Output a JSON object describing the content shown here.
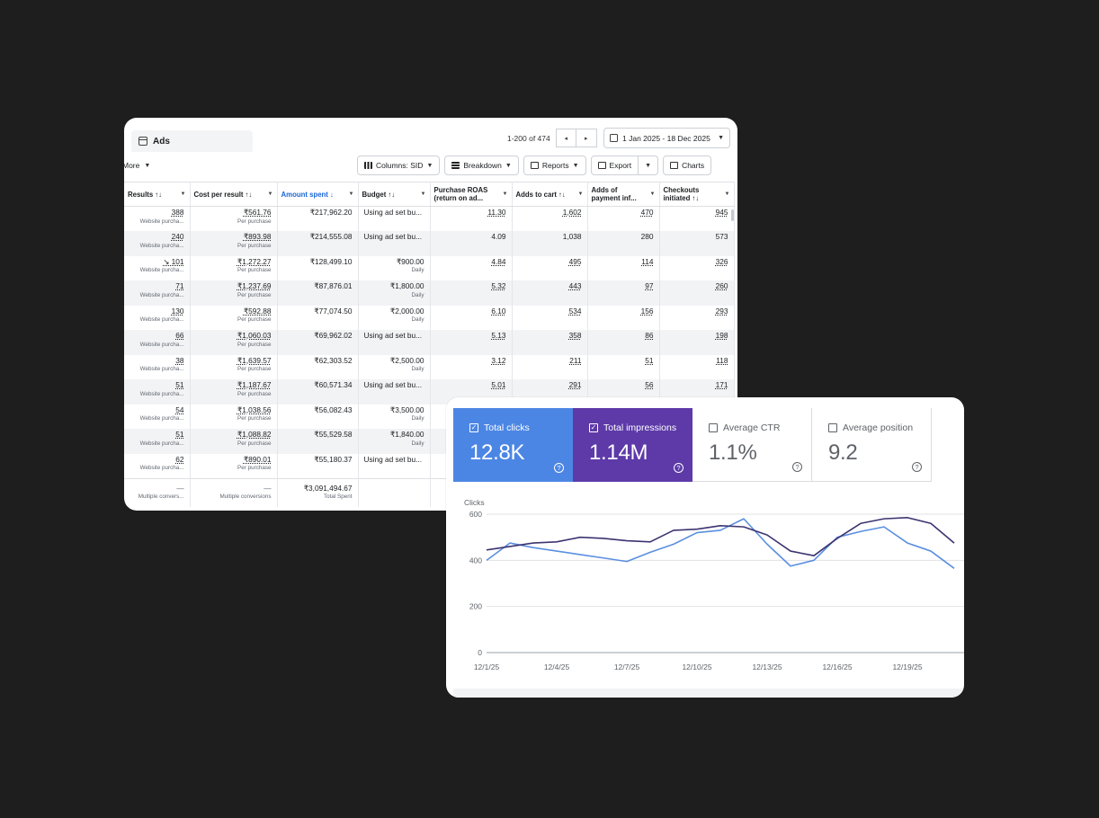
{
  "ads_panel": {
    "tab_label": "Ads",
    "pagination": {
      "range": "1-200 of 474",
      "prev": "◂",
      "next": "▸"
    },
    "date_range": "1 Jan 2025 - 18 Dec 2025",
    "more_label": "More",
    "toolbar": {
      "columns": "Columns: SID",
      "breakdown": "Breakdown",
      "reports": "Reports",
      "export": "Export",
      "charts": "Charts"
    },
    "columns": [
      "Results ↑↓",
      "Cost per result ↑↓",
      "Amount spent ↓",
      "Budget ↑↓",
      "Purchase ROAS (return on ad...",
      "Adds to cart ↑↓",
      "Adds of payment inf...",
      "Checkouts initiated ↑↓"
    ],
    "rows": [
      {
        "results": "388",
        "results_sub": "Website purcha...",
        "cost": "₹561.76",
        "cost_sub": "Per purchase",
        "spent": "₹217,962.20",
        "budget": "Using ad set bu...",
        "budget_sub": "",
        "roas": "11.30",
        "atc": "1,602",
        "payment": "470",
        "checkouts": "945"
      },
      {
        "results": "240",
        "results_sub": "Website purcha...",
        "cost": "₹893.98",
        "cost_sub": "Per purchase",
        "spent": "₹214,555.08",
        "budget": "Using ad set bu...",
        "budget_sub": "",
        "roas": "4.09",
        "atc": "1,038",
        "payment": "280",
        "checkouts": "573"
      },
      {
        "results": "↘ 101",
        "results_sub": "Website purcha...",
        "cost": "₹1,272.27",
        "cost_sub": "Per purchase",
        "spent": "₹128,499.10",
        "budget": "₹900.00",
        "budget_sub": "Daily",
        "roas": "4.84",
        "atc": "495",
        "payment": "114",
        "checkouts": "326"
      },
      {
        "results": "71",
        "results_sub": "Website purcha...",
        "cost": "₹1,237.69",
        "cost_sub": "Per purchase",
        "spent": "₹87,876.01",
        "budget": "₹1,800.00",
        "budget_sub": "Daily",
        "roas": "5.32",
        "atc": "443",
        "payment": "97",
        "checkouts": "260"
      },
      {
        "results": "130",
        "results_sub": "Website purcha...",
        "cost": "₹592.88",
        "cost_sub": "Per purchase",
        "spent": "₹77,074.50",
        "budget": "₹2,000.00",
        "budget_sub": "Daily",
        "roas": "6.10",
        "atc": "534",
        "payment": "156",
        "checkouts": "293"
      },
      {
        "results": "66",
        "results_sub": "Website purcha...",
        "cost": "₹1,060.03",
        "cost_sub": "Per purchase",
        "spent": "₹69,962.02",
        "budget": "Using ad set bu...",
        "budget_sub": "",
        "roas": "5.13",
        "atc": "358",
        "payment": "86",
        "checkouts": "198"
      },
      {
        "results": "38",
        "results_sub": "Website purcha...",
        "cost": "₹1,639.57",
        "cost_sub": "Per purchase",
        "spent": "₹62,303.52",
        "budget": "₹2,500.00",
        "budget_sub": "Daily",
        "roas": "3.12",
        "atc": "211",
        "payment": "51",
        "checkouts": "118"
      },
      {
        "results": "51",
        "results_sub": "Website purcha...",
        "cost": "₹1,187.67",
        "cost_sub": "Per purchase",
        "spent": "₹60,571.34",
        "budget": "Using ad set bu...",
        "budget_sub": "",
        "roas": "5.01",
        "atc": "291",
        "payment": "56",
        "checkouts": "171"
      },
      {
        "results": "54",
        "results_sub": "Website purcha...",
        "cost": "₹1,038.56",
        "cost_sub": "Per purchase",
        "spent": "₹56,082.43",
        "budget": "₹3,500.00",
        "budget_sub": "Daily",
        "roas": "",
        "atc": "",
        "payment": "",
        "checkouts": ""
      },
      {
        "results": "51",
        "results_sub": "Website purcha...",
        "cost": "₹1,088.82",
        "cost_sub": "Per purchase",
        "spent": "₹55,529.58",
        "budget": "₹1,840.00",
        "budget_sub": "Daily",
        "roas": "",
        "atc": "",
        "payment": "",
        "checkouts": ""
      },
      {
        "results": "62",
        "results_sub": "Website purcha...",
        "cost": "₹890.01",
        "cost_sub": "Per purchase",
        "spent": "₹55,180.37",
        "budget": "Using ad set bu...",
        "budget_sub": "",
        "roas": "",
        "atc": "",
        "payment": "",
        "checkouts": ""
      }
    ],
    "totals": {
      "results": "—",
      "results_sub": "Multiple convers...",
      "cost": "—",
      "cost_sub": "Multiple conversions",
      "spent": "₹3,091,494.67",
      "spent_sub": "Total Spent"
    }
  },
  "search_console": {
    "metrics": [
      {
        "label": "Total clicks",
        "value": "12.8K",
        "checked": true
      },
      {
        "label": "Total impressions",
        "value": "1.14M",
        "checked": true
      },
      {
        "label": "Average CTR",
        "value": "1.1%",
        "checked": false
      },
      {
        "label": "Average position",
        "value": "9.2",
        "checked": false
      }
    ],
    "colors": {
      "clicks": "#4c86e4",
      "impressions": "#5d3aa8",
      "clicks_line": "#5b8fe0",
      "impressions_line": "#3b3470"
    },
    "help_glyph": "?",
    "check_glyph": "✓"
  },
  "chart_data": {
    "type": "line",
    "ylabel": "Clicks",
    "ylim": [
      0,
      600
    ],
    "y_ticks": [
      "600",
      "400",
      "200",
      "0"
    ],
    "x_ticks": [
      "12/1/25",
      "12/4/25",
      "12/7/25",
      "12/10/25",
      "12/13/25",
      "12/16/25",
      "12/19/25"
    ],
    "x": [
      "12/1/25",
      "12/2/25",
      "12/3/25",
      "12/4/25",
      "12/5/25",
      "12/6/25",
      "12/7/25",
      "12/8/25",
      "12/9/25",
      "12/10/25",
      "12/11/25",
      "12/12/25",
      "12/13/25",
      "12/14/25",
      "12/15/25",
      "12/16/25",
      "12/17/25",
      "12/18/25",
      "12/19/25",
      "12/20/25",
      "12/21/25"
    ],
    "series": [
      {
        "values": [
          400,
          475,
          455,
          440,
          425,
          410,
          395,
          435,
          470,
          520,
          530,
          580,
          470,
          375,
          400,
          500,
          525,
          545,
          475,
          440,
          365
        ]
      },
      {
        "values": [
          445,
          460,
          475,
          480,
          500,
          495,
          485,
          480,
          530,
          535,
          550,
          545,
          510,
          440,
          420,
          495,
          560,
          580,
          585,
          560,
          475
        ]
      }
    ]
  }
}
